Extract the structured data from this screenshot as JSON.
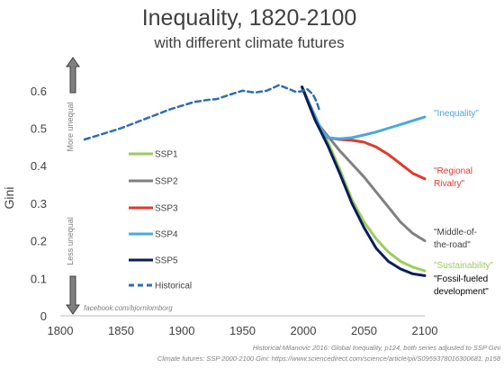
{
  "chart_data": {
    "type": "line",
    "title": "Inequality, 1820-2100",
    "subtitle": "with different climate futures",
    "ylabel": "Gini",
    "xlim": [
      1800,
      2100
    ],
    "ylim": [
      0,
      0.65
    ],
    "x_ticks": [
      "1800",
      "1850",
      "1900",
      "1950",
      "2000",
      "2050",
      "2100"
    ],
    "y_ticks": [
      "0",
      "0.1",
      "0.2",
      "0.3",
      "0.4",
      "0.5",
      "0.6"
    ],
    "arrow_up_label": "More unequal",
    "arrow_down_label": "Less unequal",
    "credit": "facebook.com/bjornlomborg",
    "source_line1": "Historical:Milanovic 2016: Global Inequality, p124, both series adjusted to SSP Gini",
    "source_line2": "Climate futures: SSP 2000-2100 Gini: https://www.sciencedirect.com/science/article/pii/S0959378016300681, p158",
    "legend_position": "left",
    "series": [
      {
        "name": "SSP1",
        "color": "#9ACD5A",
        "end_label": [
          "\"Sustainability\""
        ],
        "points": [
          [
            1999,
            0.61
          ],
          [
            2005,
            0.56
          ],
          [
            2010,
            0.52
          ],
          [
            2020,
            0.465
          ],
          [
            2030,
            0.39
          ],
          [
            2040,
            0.31
          ],
          [
            2050,
            0.25
          ],
          [
            2060,
            0.205
          ],
          [
            2070,
            0.17
          ],
          [
            2080,
            0.145
          ],
          [
            2090,
            0.13
          ],
          [
            2100,
            0.12
          ]
        ]
      },
      {
        "name": "SSP2",
        "color": "#808080",
        "end_label": [
          "\"Middle-of-",
          "the-road\""
        ],
        "points": [
          [
            1999,
            0.61
          ],
          [
            2005,
            0.56
          ],
          [
            2010,
            0.52
          ],
          [
            2020,
            0.48
          ],
          [
            2030,
            0.44
          ],
          [
            2040,
            0.405
          ],
          [
            2050,
            0.37
          ],
          [
            2060,
            0.33
          ],
          [
            2070,
            0.29
          ],
          [
            2080,
            0.25
          ],
          [
            2090,
            0.22
          ],
          [
            2100,
            0.2
          ]
        ]
      },
      {
        "name": "SSP3",
        "color": "#E03A2C",
        "end_label": [
          "\"Regional",
          "Rivalry\""
        ],
        "points": [
          [
            1999,
            0.61
          ],
          [
            2005,
            0.565
          ],
          [
            2010,
            0.53
          ],
          [
            2015,
            0.49
          ],
          [
            2020,
            0.475
          ],
          [
            2030,
            0.47
          ],
          [
            2040,
            0.468
          ],
          [
            2050,
            0.463
          ],
          [
            2060,
            0.45
          ],
          [
            2070,
            0.43
          ],
          [
            2080,
            0.405
          ],
          [
            2090,
            0.38
          ],
          [
            2100,
            0.365
          ]
        ]
      },
      {
        "name": "SSP4",
        "color": "#4AA8E0",
        "end_label": [
          "\"Inequality\""
        ],
        "points": [
          [
            1999,
            0.61
          ],
          [
            2005,
            0.565
          ],
          [
            2010,
            0.53
          ],
          [
            2015,
            0.495
          ],
          [
            2020,
            0.475
          ],
          [
            2030,
            0.472
          ],
          [
            2040,
            0.475
          ],
          [
            2050,
            0.482
          ],
          [
            2060,
            0.49
          ],
          [
            2070,
            0.5
          ],
          [
            2080,
            0.51
          ],
          [
            2090,
            0.52
          ],
          [
            2100,
            0.53
          ]
        ]
      },
      {
        "name": "SSP5",
        "color": "#0A1C5C",
        "end_label": [
          "\"Fossil-fueled",
          "development\""
        ],
        "points": [
          [
            1999,
            0.61
          ],
          [
            2005,
            0.56
          ],
          [
            2010,
            0.52
          ],
          [
            2020,
            0.455
          ],
          [
            2030,
            0.38
          ],
          [
            2040,
            0.3
          ],
          [
            2050,
            0.235
          ],
          [
            2060,
            0.18
          ],
          [
            2070,
            0.145
          ],
          [
            2080,
            0.125
          ],
          [
            2090,
            0.112
          ],
          [
            2100,
            0.107
          ]
        ]
      },
      {
        "name": "Historical",
        "color": "#2E6DB4",
        "dashed": true,
        "points": [
          [
            1820,
            0.47
          ],
          [
            1830,
            0.48
          ],
          [
            1850,
            0.5
          ],
          [
            1870,
            0.525
          ],
          [
            1890,
            0.55
          ],
          [
            1900,
            0.56
          ],
          [
            1910,
            0.57
          ],
          [
            1920,
            0.575
          ],
          [
            1929,
            0.578
          ],
          [
            1940,
            0.59
          ],
          [
            1950,
            0.6
          ],
          [
            1960,
            0.595
          ],
          [
            1970,
            0.6
          ],
          [
            1980,
            0.615
          ],
          [
            1988,
            0.605
          ],
          [
            1993,
            0.598
          ],
          [
            1998,
            0.598
          ],
          [
            2003,
            0.605
          ],
          [
            2008,
            0.59
          ],
          [
            2011,
            0.57
          ],
          [
            2013,
            0.55
          ]
        ]
      }
    ]
  }
}
